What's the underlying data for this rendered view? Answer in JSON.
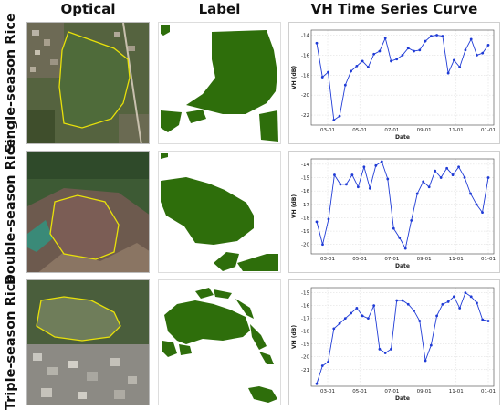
{
  "columns": [
    "Optical",
    "Label",
    "VH Time Series Curve"
  ],
  "colors": {
    "label_fill": "#2e6e0b",
    "curve": "#1f3bd6",
    "boundary": "#e8e10a"
  },
  "rows": [
    {
      "name": "Single-season Rice"
    },
    {
      "name": "Double-season Rice"
    },
    {
      "name": "Triple-season Rice"
    }
  ],
  "chart_data": [
    {
      "type": "line",
      "xlabel": "Date",
      "ylabel": "VH (dB)",
      "x_ticks": [
        "03-01",
        "05-01",
        "07-01",
        "09-01",
        "11-01",
        "01-01"
      ],
      "ylim": [
        -23,
        -13.5
      ],
      "y_ticks": [
        -22,
        -20,
        -18,
        -16,
        -14
      ],
      "grid": true,
      "series": [
        {
          "values": [
            -14.8,
            -18.2,
            -17.7,
            -22.5,
            -22.1,
            -19.0,
            -17.6,
            -17.1,
            -16.6,
            -17.2,
            -15.9,
            -15.6,
            -14.3,
            -16.6,
            -16.4,
            -16.0,
            -15.3,
            -15.6,
            -15.5,
            -14.6,
            -14.1,
            -14.0,
            -14.1,
            -17.8,
            -16.5,
            -17.2,
            -15.5,
            -14.4,
            -16.0,
            -15.8,
            -15.0
          ]
        }
      ]
    },
    {
      "type": "line",
      "xlabel": "Date",
      "ylabel": "VH (dB)",
      "x_ticks": [
        "03-01",
        "05-01",
        "07-01",
        "09-01",
        "11-01",
        "01-01"
      ],
      "ylim": [
        -20.7,
        -13.6
      ],
      "y_ticks": [
        -20,
        -19,
        -18,
        -17,
        -16,
        -15,
        -14
      ],
      "grid": true,
      "series": [
        {
          "values": [
            -18.3,
            -20.0,
            -18.1,
            -14.8,
            -15.5,
            -15.5,
            -14.8,
            -15.7,
            -14.2,
            -15.8,
            -14.1,
            -13.8,
            -15.1,
            -18.8,
            -19.5,
            -20.3,
            -18.2,
            -16.2,
            -15.3,
            -15.7,
            -14.5,
            -15.0,
            -14.3,
            -14.8,
            -14.2,
            -15.0,
            -16.2,
            -17.0,
            -17.6,
            -15.0
          ]
        }
      ]
    },
    {
      "type": "line",
      "xlabel": "Date",
      "ylabel": "VH (dB)",
      "x_ticks": [
        "03-01",
        "05-01",
        "07-01",
        "09-01",
        "11-01",
        "01-01"
      ],
      "ylim": [
        -22.3,
        -14.6
      ],
      "y_ticks": [
        -21,
        -20,
        -19,
        -18,
        -17,
        -16,
        -15
      ],
      "grid": true,
      "series": [
        {
          "values": [
            -22.1,
            -20.7,
            -20.4,
            -17.8,
            -17.4,
            -17.0,
            -16.6,
            -16.2,
            -16.8,
            -17.0,
            -16.0,
            -19.4,
            -19.7,
            -19.4,
            -15.6,
            -15.6,
            -15.9,
            -16.4,
            -17.2,
            -20.3,
            -19.1,
            -16.8,
            -15.9,
            -15.7,
            -15.3,
            -16.2,
            -15.0,
            -15.3,
            -15.8,
            -17.1,
            -17.2
          ]
        }
      ]
    }
  ]
}
